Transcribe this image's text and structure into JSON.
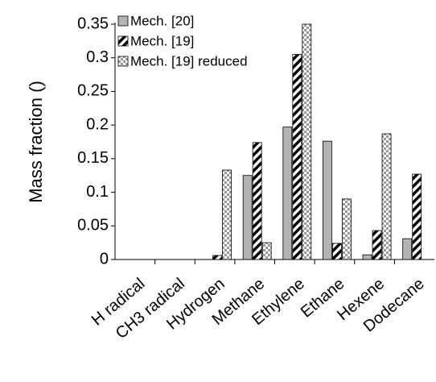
{
  "chart_data": {
    "type": "bar",
    "y_label": "Mass fraction ()",
    "categories": [
      "H radical",
      "CH3 radical",
      "Hydrogen",
      "Methane",
      "Ethylene",
      "Ethane",
      "Hexene",
      "Dodecane"
    ],
    "series": [
      {
        "name": "Mech. [20]",
        "color": "#b3b3b3",
        "pattern": "solid",
        "values": [
          0,
          0,
          0,
          0.125,
          0.197,
          0.176,
          0.007,
          0.031
        ]
      },
      {
        "name": "Mech. [19]",
        "color": "#000000",
        "pattern": "diagonal",
        "values": [
          0,
          0,
          0.006,
          0.174,
          0.305,
          0.024,
          0.043,
          0.127
        ]
      },
      {
        "name": "Mech. [19] reduced",
        "color": "#999999",
        "pattern": "checker",
        "values": [
          0,
          0,
          0.133,
          0.025,
          0.35,
          0.09,
          0.187,
          0
        ]
      }
    ],
    "ylim": [
      0,
      0.35
    ],
    "yticks": [
      0,
      0.05,
      0.1,
      0.15,
      0.2,
      0.25,
      0.3,
      0.35
    ],
    "grid": false,
    "legend": "top-left"
  }
}
